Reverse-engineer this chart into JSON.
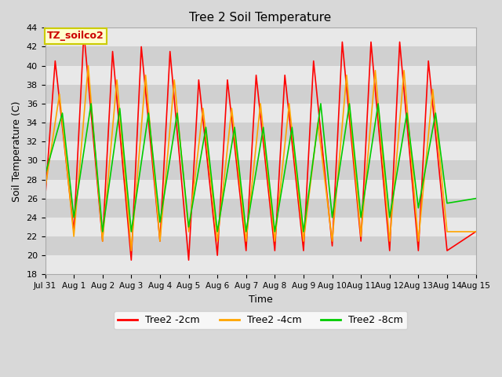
{
  "title": "Tree 2 Soil Temperature",
  "xlabel": "Time",
  "ylabel": "Soil Temperature (C)",
  "ylim": [
    18,
    44
  ],
  "yticks": [
    18,
    20,
    22,
    24,
    26,
    28,
    30,
    32,
    34,
    36,
    38,
    40,
    42,
    44
  ],
  "fig_bg_color": "#d8d8d8",
  "plot_bg_color": "#ffffff",
  "band_colors": [
    "#e8e8e8",
    "#d0d0d0"
  ],
  "legend_entries": [
    "Tree2 -2cm",
    "Tree2 -4cm",
    "Tree2 -8cm"
  ],
  "legend_colors": [
    "#ff0000",
    "#ffa500",
    "#00cc00"
  ],
  "annotation_text": "TZ_soilco2",
  "annotation_color": "#cc0000",
  "annotation_bg": "#ffffcc",
  "annotation_border": "#cccc00",
  "x_tick_labels": [
    "Jul 31",
    "Aug 1",
    "Aug 2",
    "Aug 3",
    "Aug 4",
    "Aug 5",
    "Aug 6",
    "Aug 7",
    "Aug 8",
    "Aug 9",
    "Aug 10",
    "Aug 11",
    "Aug 12",
    "Aug 13",
    "Aug 14",
    "Aug 15"
  ],
  "n_days": 15,
  "series": {
    "2cm": {
      "color": "#ff0000",
      "label": "Tree2 -2cm",
      "points": [
        [
          0.0,
          26.0
        ],
        [
          0.35,
          40.5
        ],
        [
          1.0,
          22.5
        ],
        [
          1.35,
          43.5
        ],
        [
          2.0,
          21.5
        ],
        [
          2.35,
          41.5
        ],
        [
          3.0,
          19.5
        ],
        [
          3.35,
          42.0
        ],
        [
          4.0,
          21.5
        ],
        [
          4.35,
          41.5
        ],
        [
          5.0,
          19.5
        ],
        [
          5.35,
          38.5
        ],
        [
          6.0,
          20.0
        ],
        [
          6.35,
          38.5
        ],
        [
          7.0,
          20.5
        ],
        [
          7.35,
          39.0
        ],
        [
          8.0,
          20.5
        ],
        [
          8.35,
          39.0
        ],
        [
          9.0,
          20.5
        ],
        [
          9.35,
          40.5
        ],
        [
          10.0,
          21.0
        ],
        [
          10.35,
          42.5
        ],
        [
          11.0,
          21.5
        ],
        [
          11.35,
          42.5
        ],
        [
          12.0,
          20.5
        ],
        [
          12.35,
          42.5
        ],
        [
          13.0,
          20.5
        ],
        [
          13.35,
          40.5
        ],
        [
          14.0,
          20.5
        ],
        [
          15.0,
          22.5
        ]
      ]
    },
    "4cm": {
      "color": "#ffa500",
      "label": "Tree2 -4cm",
      "points": [
        [
          0.0,
          27.0
        ],
        [
          0.5,
          37.0
        ],
        [
          1.0,
          22.0
        ],
        [
          1.5,
          40.0
        ],
        [
          2.0,
          21.5
        ],
        [
          2.5,
          38.5
        ],
        [
          3.0,
          20.5
        ],
        [
          3.5,
          39.0
        ],
        [
          4.0,
          21.5
        ],
        [
          4.5,
          38.5
        ],
        [
          5.0,
          22.5
        ],
        [
          5.5,
          35.5
        ],
        [
          6.0,
          21.5
        ],
        [
          6.5,
          35.5
        ],
        [
          7.0,
          21.5
        ],
        [
          7.5,
          36.0
        ],
        [
          8.0,
          21.5
        ],
        [
          8.5,
          36.0
        ],
        [
          9.0,
          21.5
        ],
        [
          9.5,
          34.0
        ],
        [
          10.0,
          21.5
        ],
        [
          10.5,
          39.0
        ],
        [
          11.0,
          22.0
        ],
        [
          11.5,
          39.5
        ],
        [
          12.0,
          21.5
        ],
        [
          12.5,
          39.5
        ],
        [
          13.0,
          21.5
        ],
        [
          13.5,
          37.5
        ],
        [
          14.0,
          22.5
        ],
        [
          15.0,
          22.5
        ]
      ]
    },
    "8cm": {
      "color": "#00cc00",
      "label": "Tree2 -8cm",
      "points": [
        [
          0.0,
          28.5
        ],
        [
          0.6,
          35.0
        ],
        [
          1.0,
          24.0
        ],
        [
          1.6,
          36.0
        ],
        [
          2.0,
          22.5
        ],
        [
          2.6,
          35.5
        ],
        [
          3.0,
          22.5
        ],
        [
          3.6,
          35.0
        ],
        [
          4.0,
          23.5
        ],
        [
          4.6,
          35.0
        ],
        [
          5.0,
          23.0
        ],
        [
          5.6,
          33.5
        ],
        [
          6.0,
          22.5
        ],
        [
          6.6,
          33.5
        ],
        [
          7.0,
          22.5
        ],
        [
          7.6,
          33.5
        ],
        [
          8.0,
          22.5
        ],
        [
          8.6,
          33.5
        ],
        [
          9.0,
          22.5
        ],
        [
          9.6,
          36.0
        ],
        [
          10.0,
          24.0
        ],
        [
          10.6,
          36.0
        ],
        [
          11.0,
          24.0
        ],
        [
          11.6,
          36.0
        ],
        [
          12.0,
          24.0
        ],
        [
          12.6,
          35.0
        ],
        [
          13.0,
          25.0
        ],
        [
          13.6,
          35.0
        ],
        [
          14.0,
          25.5
        ],
        [
          15.0,
          26.0
        ]
      ]
    }
  }
}
